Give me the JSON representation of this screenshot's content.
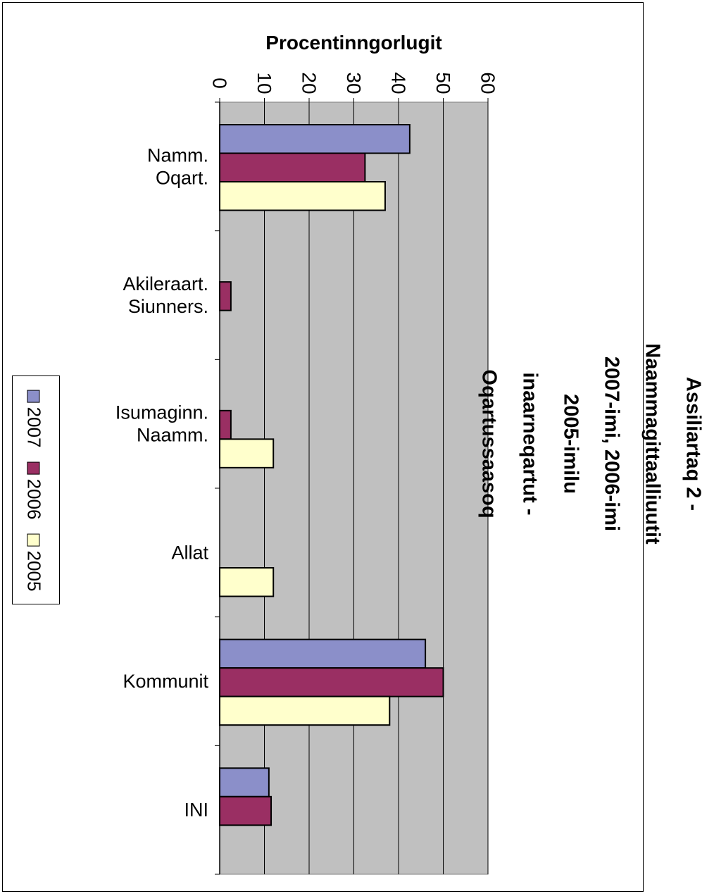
{
  "chart_data": {
    "type": "bar",
    "title": "Assiliartaq 2 - Naammagittaalliuutit 2007-imi, 2006-imi 2005-imilu inaarneqartut - Oqartussaasoq",
    "xlabel": "",
    "ylabel": "Procentinngorlugit",
    "ylim": [
      0,
      60
    ],
    "yticks": [
      0,
      10,
      20,
      30,
      40,
      50,
      60
    ],
    "grid": true,
    "legend_position": "left",
    "categories": [
      "Namm.\nOqart.",
      "Akileraart.\nSiunners.",
      "Isumaginn.\nNaamm.",
      "Allat",
      "Kommunit",
      "INI"
    ],
    "series": [
      {
        "name": "2007",
        "color": "#8B8FC9",
        "values": [
          42.5,
          0,
          0,
          0,
          46,
          11
        ]
      },
      {
        "name": "2006",
        "color": "#9A2F63",
        "values": [
          32.5,
          2.5,
          2.5,
          0,
          50,
          11.5
        ]
      },
      {
        "name": "2005",
        "color": "#FFFFCC",
        "values": [
          37,
          0,
          12,
          12,
          38,
          0
        ]
      }
    ],
    "plot_background": "#C0C0C0"
  }
}
